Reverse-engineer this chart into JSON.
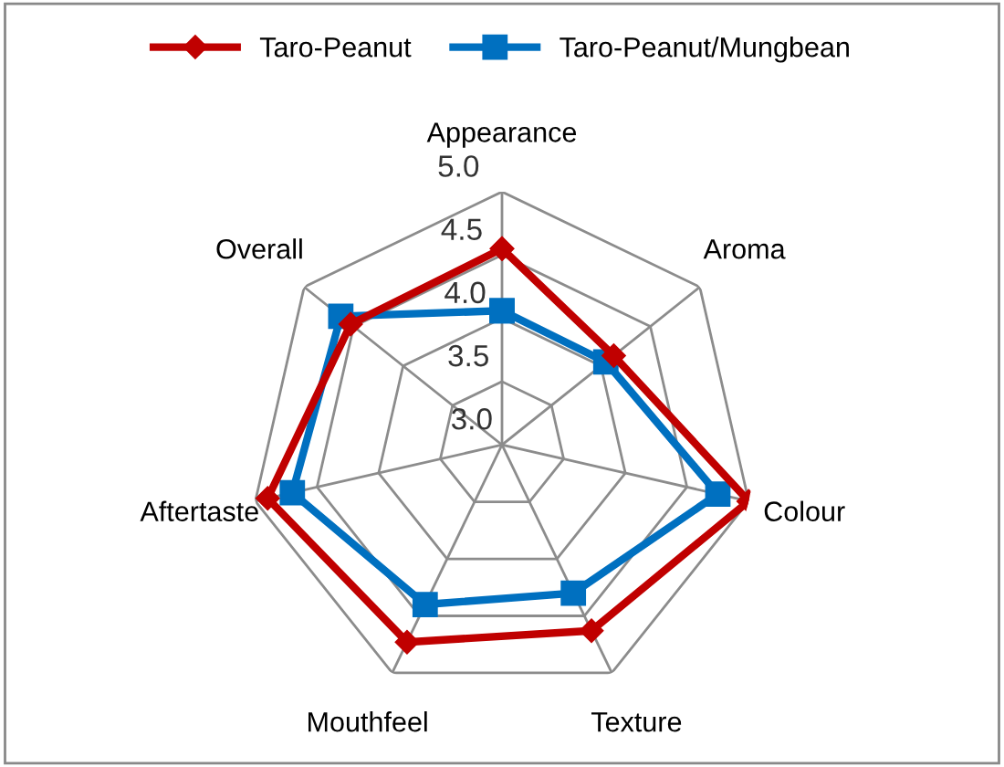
{
  "chart_data": {
    "type": "radar",
    "categories": [
      "Appearance",
      "Aroma",
      "Colour",
      "Texture",
      "Mouthfeel",
      "Aftertaste",
      "Overall"
    ],
    "series": [
      {
        "name": "Taro-Peanut",
        "color": "#c00000",
        "marker": "diamond",
        "values": [
          4.55,
          4.13,
          5.0,
          4.63,
          4.73,
          4.9,
          4.53
        ]
      },
      {
        "name": "Taro-Peanut/Mungbean",
        "color": "#0070c0",
        "marker": "square",
        "values": [
          4.06,
          4.05,
          4.75,
          4.3,
          4.4,
          4.7,
          4.63
        ]
      }
    ],
    "ylim": [
      3.0,
      5.0
    ],
    "yticks": [
      {
        "value": 3.0,
        "label": "3.0"
      },
      {
        "value": 3.5,
        "label": "3.5"
      },
      {
        "value": 4.0,
        "label": "4.0"
      },
      {
        "value": 4.5,
        "label": "4.5"
      },
      {
        "value": 5.0,
        "label": "5.0"
      }
    ],
    "grid": true,
    "legend": "top"
  }
}
